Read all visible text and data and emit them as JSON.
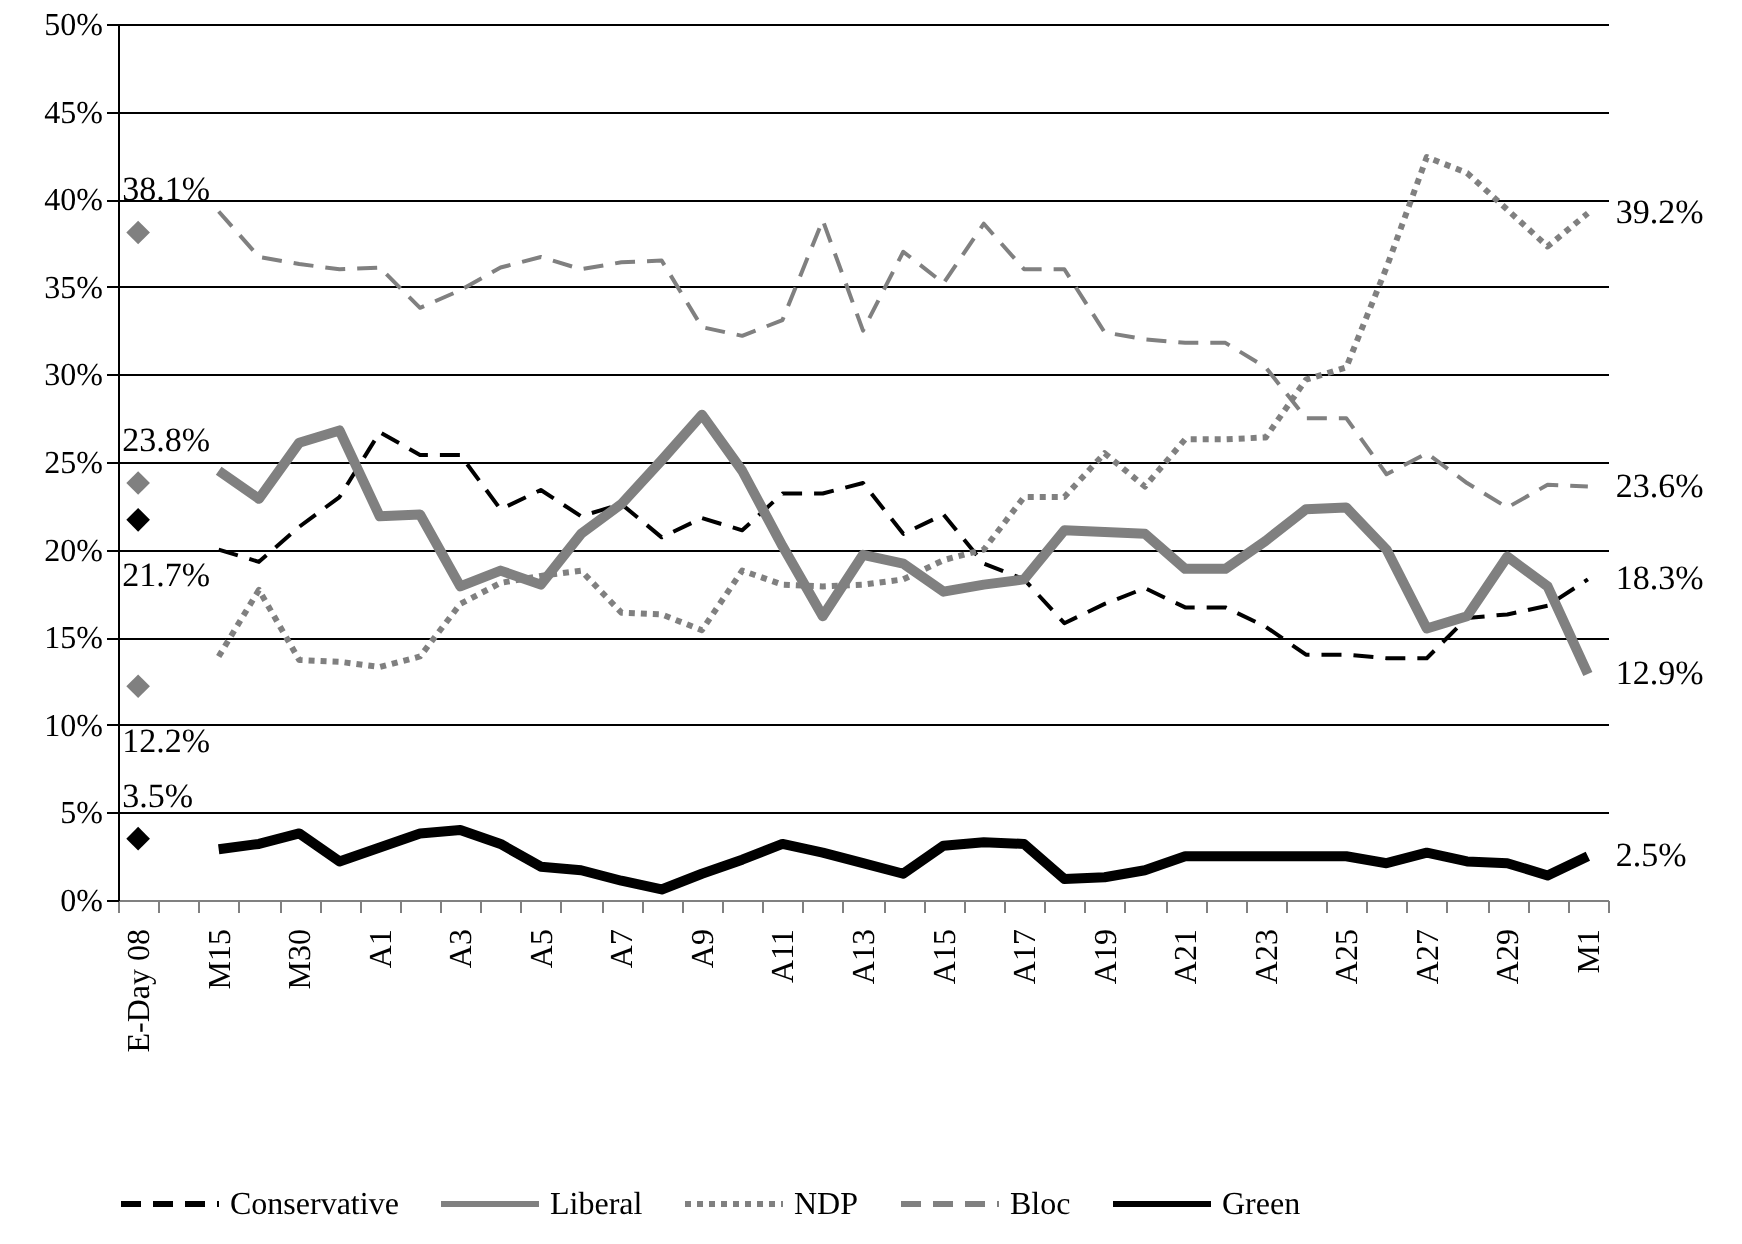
{
  "chart_data": {
    "type": "line",
    "categories": [
      "E-Day 08",
      null,
      "M15",
      null,
      "M30",
      null,
      "A1",
      null,
      "A3",
      null,
      "A5",
      null,
      "A7",
      null,
      "A9",
      null,
      "A11",
      null,
      "A13",
      null,
      "A15",
      null,
      "A17",
      null,
      "A19",
      null,
      "A21",
      null,
      "A23",
      null,
      "A25",
      null,
      "A27",
      null,
      "A29",
      null,
      "M1"
    ],
    "ylim": [
      0,
      50
    ],
    "yticks": [
      {
        "value": 0,
        "label": "0%"
      },
      {
        "value": 5,
        "label": "5%"
      },
      {
        "value": 10,
        "label": "10%"
      },
      {
        "value": 15,
        "label": "15%"
      },
      {
        "value": 20,
        "label": "20%"
      },
      {
        "value": 25,
        "label": "25%"
      },
      {
        "value": 30,
        "label": "30%"
      },
      {
        "value": 35,
        "label": "35%"
      },
      {
        "value": 40,
        "label": "40%"
      },
      {
        "value": 45,
        "label": "45%"
      },
      {
        "value": 50,
        "label": "50%"
      }
    ],
    "grid": "y",
    "legend": "bottom",
    "series": [
      {
        "name": "Conservative",
        "color": "#000000",
        "line_style": "dashed",
        "values": [
          null,
          null,
          20.0,
          19.3,
          21.3,
          23.0,
          26.7,
          25.4,
          25.4,
          22.3,
          23.4,
          21.9,
          22.6,
          20.7,
          21.8,
          21.1,
          23.2,
          23.2,
          23.8,
          20.9,
          22.0,
          19.2,
          18.3,
          15.8,
          16.9,
          17.8,
          16.7,
          16.7,
          15.6,
          14.0,
          14.0,
          13.8,
          13.8,
          16.1,
          16.3,
          16.8,
          18.3
        ],
        "value_labels": [
          null,
          null,
          null,
          null,
          null,
          null,
          null,
          null,
          null,
          null,
          null,
          null,
          null,
          null,
          null,
          null,
          null,
          null,
          null,
          null,
          null,
          null,
          null,
          null,
          null,
          null,
          null,
          null,
          null,
          null,
          null,
          null,
          null,
          null,
          null,
          null,
          "18.3%"
        ]
      },
      {
        "name": "Liberal",
        "color": "#808080",
        "line_style": "solid",
        "values": [
          null,
          null,
          24.5,
          22.9,
          26.1,
          26.8,
          21.9,
          22.0,
          17.9,
          18.8,
          18.0,
          20.9,
          22.6,
          25.1,
          27.7,
          24.5,
          20.2,
          16.2,
          19.7,
          19.2,
          17.6,
          18.0,
          18.3,
          21.1,
          21.0,
          20.9,
          18.9,
          18.9,
          20.5,
          22.3,
          22.4,
          20.0,
          15.5,
          16.2,
          19.6,
          17.9,
          12.9
        ],
        "value_labels": [
          null,
          null,
          null,
          null,
          null,
          null,
          null,
          null,
          null,
          null,
          null,
          null,
          null,
          null,
          null,
          null,
          null,
          null,
          null,
          null,
          null,
          null,
          null,
          null,
          null,
          null,
          null,
          null,
          null,
          null,
          null,
          null,
          null,
          null,
          null,
          null,
          "12.9%"
        ]
      },
      {
        "name": "NDP",
        "color": "#808080",
        "line_style": "dotted",
        "values": [
          null,
          null,
          13.9,
          17.7,
          13.7,
          13.6,
          13.3,
          13.9,
          16.9,
          18.1,
          18.5,
          18.8,
          16.4,
          16.3,
          15.4,
          18.8,
          18.0,
          17.9,
          18.0,
          18.3,
          19.4,
          20.0,
          23.0,
          23.0,
          25.5,
          23.6,
          26.3,
          26.3,
          26.4,
          29.7,
          30.4,
          36.1,
          42.4,
          41.5,
          39.4,
          37.3,
          39.2
        ],
        "value_labels": [
          null,
          null,
          null,
          null,
          null,
          null,
          null,
          null,
          null,
          null,
          null,
          null,
          null,
          null,
          null,
          null,
          null,
          null,
          null,
          null,
          null,
          null,
          null,
          null,
          null,
          null,
          null,
          null,
          null,
          null,
          null,
          null,
          null,
          null,
          null,
          null,
          "39.2%"
        ]
      },
      {
        "name": "Bloc",
        "color": "#808080",
        "line_style": "dashed",
        "values": [
          null,
          null,
          39.3,
          36.7,
          36.3,
          36.0,
          36.1,
          33.8,
          34.8,
          36.1,
          36.7,
          36.0,
          36.4,
          36.5,
          32.7,
          32.2,
          33.1,
          38.8,
          32.5,
          37.0,
          35.2,
          38.6,
          36.0,
          36.0,
          32.4,
          32.0,
          31.8,
          31.8,
          30.4,
          27.5,
          27.5,
          24.3,
          25.5,
          23.8,
          22.4,
          23.7,
          23.6
        ],
        "value_labels": [
          null,
          null,
          null,
          null,
          null,
          null,
          null,
          null,
          null,
          null,
          null,
          null,
          null,
          null,
          null,
          null,
          null,
          null,
          null,
          null,
          null,
          null,
          null,
          null,
          null,
          null,
          null,
          null,
          null,
          null,
          null,
          null,
          null,
          null,
          null,
          null,
          "23.6%"
        ]
      },
      {
        "name": "Green",
        "color": "#000000",
        "line_style": "solid",
        "values": [
          null,
          null,
          2.9,
          3.2,
          3.8,
          2.2,
          3.0,
          3.8,
          4.0,
          3.2,
          1.9,
          1.7,
          1.1,
          0.6,
          1.5,
          2.3,
          3.2,
          2.7,
          2.1,
          1.5,
          3.1,
          3.3,
          3.2,
          1.2,
          1.3,
          1.7,
          2.5,
          2.5,
          2.5,
          2.5,
          2.5,
          2.1,
          2.7,
          2.2,
          2.1,
          1.4,
          2.5
        ],
        "value_labels": [
          null,
          null,
          null,
          null,
          null,
          null,
          null,
          null,
          null,
          null,
          null,
          null,
          null,
          null,
          null,
          null,
          null,
          null,
          null,
          null,
          null,
          null,
          null,
          null,
          null,
          null,
          null,
          null,
          null,
          null,
          null,
          null,
          null,
          null,
          null,
          null,
          "2.5%"
        ]
      },
      {
        "type": "scatter",
        "marker": "diamond",
        "color": "#808080",
        "values": [
          38.1,
          null,
          null,
          null,
          null,
          null,
          null,
          null,
          null,
          null,
          null,
          null,
          null,
          null,
          null,
          null,
          null,
          null,
          null,
          null,
          null,
          null,
          null,
          null,
          null,
          null,
          null,
          null,
          null,
          null,
          null,
          null,
          null,
          null,
          null,
          null,
          null
        ],
        "value_labels": [
          "38.1%",
          null,
          null,
          null,
          null,
          null,
          null,
          null,
          null,
          null,
          null,
          null,
          null,
          null,
          null,
          null,
          null,
          null,
          null,
          null,
          null,
          null,
          null,
          null,
          null,
          null,
          null,
          null,
          null,
          null,
          null,
          null,
          null,
          null,
          null,
          null,
          null
        ]
      },
      {
        "type": "scatter",
        "marker": "diamond",
        "color": "#808080",
        "values": [
          23.8,
          null,
          null,
          null,
          null,
          null,
          null,
          null,
          null,
          null,
          null,
          null,
          null,
          null,
          null,
          null,
          null,
          null,
          null,
          null,
          null,
          null,
          null,
          null,
          null,
          null,
          null,
          null,
          null,
          null,
          null,
          null,
          null,
          null,
          null,
          null,
          null
        ],
        "value_labels": [
          "23.8%",
          null,
          null,
          null,
          null,
          null,
          null,
          null,
          null,
          null,
          null,
          null,
          null,
          null,
          null,
          null,
          null,
          null,
          null,
          null,
          null,
          null,
          null,
          null,
          null,
          null,
          null,
          null,
          null,
          null,
          null,
          null,
          null,
          null,
          null,
          null,
          null
        ]
      },
      {
        "type": "scatter",
        "marker": "diamond",
        "color": "#000000",
        "values": [
          21.7,
          null,
          null,
          null,
          null,
          null,
          null,
          null,
          null,
          null,
          null,
          null,
          null,
          null,
          null,
          null,
          null,
          null,
          null,
          null,
          null,
          null,
          null,
          null,
          null,
          null,
          null,
          null,
          null,
          null,
          null,
          null,
          null,
          null,
          null,
          null,
          null
        ],
        "value_labels": [
          "21.7%",
          null,
          null,
          null,
          null,
          null,
          null,
          null,
          null,
          null,
          null,
          null,
          null,
          null,
          null,
          null,
          null,
          null,
          null,
          null,
          null,
          null,
          null,
          null,
          null,
          null,
          null,
          null,
          null,
          null,
          null,
          null,
          null,
          null,
          null,
          null,
          null
        ]
      },
      {
        "type": "scatter",
        "marker": "diamond",
        "color": "#808080",
        "values": [
          12.2,
          null,
          null,
          null,
          null,
          null,
          null,
          null,
          null,
          null,
          null,
          null,
          null,
          null,
          null,
          null,
          null,
          null,
          null,
          null,
          null,
          null,
          null,
          null,
          null,
          null,
          null,
          null,
          null,
          null,
          null,
          null,
          null,
          null,
          null,
          null,
          null
        ],
        "value_labels": [
          "12.2%",
          null,
          null,
          null,
          null,
          null,
          null,
          null,
          null,
          null,
          null,
          null,
          null,
          null,
          null,
          null,
          null,
          null,
          null,
          null,
          null,
          null,
          null,
          null,
          null,
          null,
          null,
          null,
          null,
          null,
          null,
          null,
          null,
          null,
          null,
          null,
          null
        ]
      },
      {
        "type": "scatter",
        "marker": "diamond",
        "color": "#000000",
        "values": [
          3.5,
          null,
          null,
          null,
          null,
          null,
          null,
          null,
          null,
          null,
          null,
          null,
          null,
          null,
          null,
          null,
          null,
          null,
          null,
          null,
          null,
          null,
          null,
          null,
          null,
          null,
          null,
          null,
          null,
          null,
          null,
          null,
          null,
          null,
          null,
          null,
          null
        ],
        "value_labels": [
          "3.5%",
          null,
          null,
          null,
          null,
          null,
          null,
          null,
          null,
          null,
          null,
          null,
          null,
          null,
          null,
          null,
          null,
          null,
          null,
          null,
          null,
          null,
          null,
          null,
          null,
          null,
          null,
          null,
          null,
          null,
          null,
          null,
          null,
          null,
          null,
          null,
          null
        ]
      }
    ]
  }
}
